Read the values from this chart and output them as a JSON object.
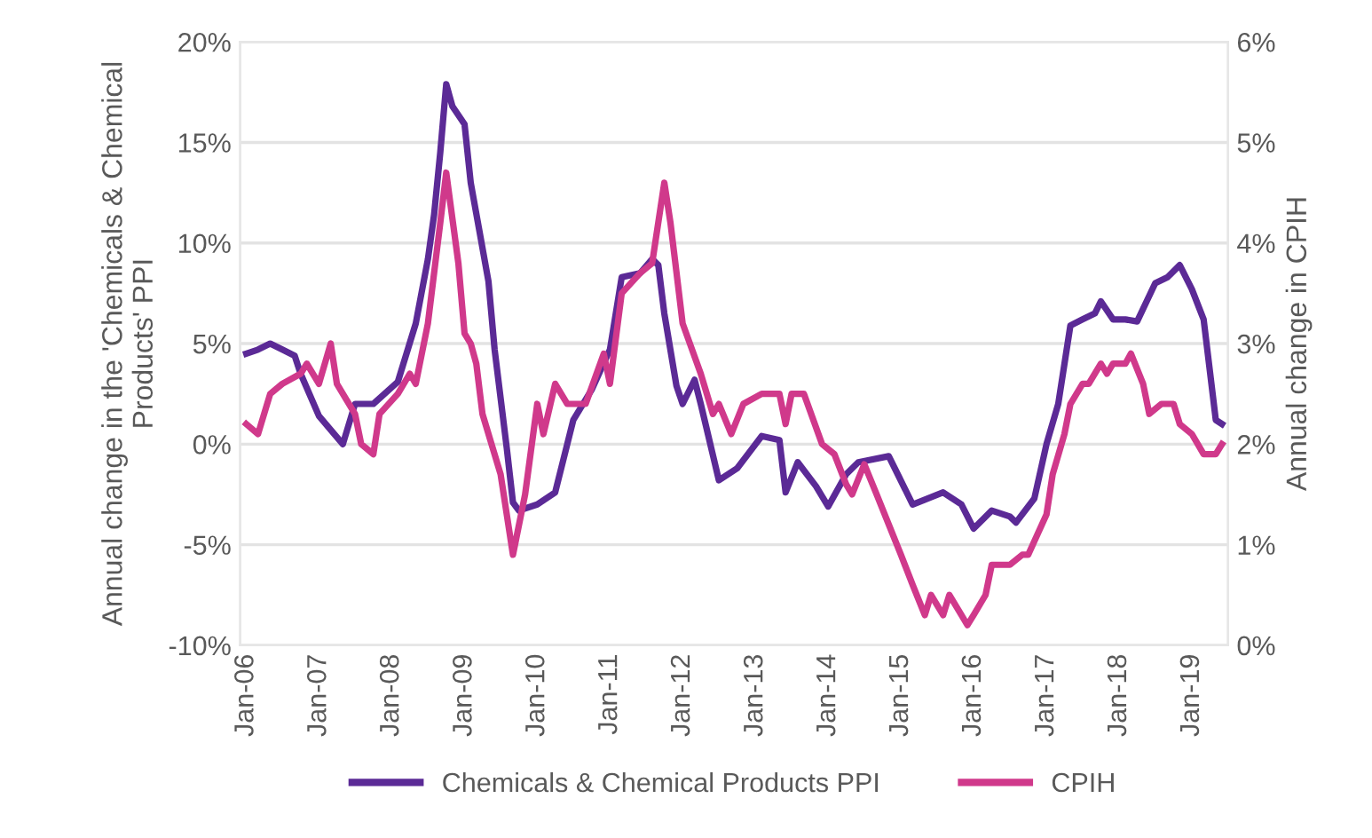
{
  "chart_data": {
    "type": "line",
    "ylabel": "Annual change in the 'Chemicals & Chemical Products' PPI",
    "y2label": "Annual change in CPIH",
    "xlim": [
      "2005-12",
      "2019-07"
    ],
    "xticks": [
      {
        "value": "2006-01",
        "label": "Jan-06"
      },
      {
        "value": "2007-01",
        "label": "Jan-07"
      },
      {
        "value": "2008-01",
        "label": "Jan-08"
      },
      {
        "value": "2009-01",
        "label": "Jan-09"
      },
      {
        "value": "2010-01",
        "label": "Jan-10"
      },
      {
        "value": "2011-01",
        "label": "Jan-11"
      },
      {
        "value": "2012-01",
        "label": "Jan-12"
      },
      {
        "value": "2013-01",
        "label": "Jan-13"
      },
      {
        "value": "2014-01",
        "label": "Jan-14"
      },
      {
        "value": "2015-01",
        "label": "Jan-15"
      },
      {
        "value": "2016-01",
        "label": "Jan-16"
      },
      {
        "value": "2017-01",
        "label": "Jan-17"
      },
      {
        "value": "2018-01",
        "label": "Jan-18"
      },
      {
        "value": "2019-01",
        "label": "Jan-19"
      }
    ],
    "ylim": [
      -10,
      20
    ],
    "yticks": [
      {
        "value": -10,
        "label": "-10%"
      },
      {
        "value": -5,
        "label": "-5%"
      },
      {
        "value": 0,
        "label": "0%"
      },
      {
        "value": 5,
        "label": "5%"
      },
      {
        "value": 10,
        "label": "10%"
      },
      {
        "value": 15,
        "label": "15%"
      },
      {
        "value": 20,
        "label": "20%"
      }
    ],
    "y2lim": [
      0,
      6
    ],
    "y2ticks": [
      {
        "value": 0,
        "label": "0%"
      },
      {
        "value": 1,
        "label": "1%"
      },
      {
        "value": 2,
        "label": "2%"
      },
      {
        "value": 3,
        "label": "3%"
      },
      {
        "value": 4,
        "label": "4%"
      },
      {
        "value": 5,
        "label": "5%"
      },
      {
        "value": 6,
        "label": "6%"
      }
    ],
    "grid": "y",
    "legend": "bottom",
    "series": [
      {
        "name": "Chemicals & Chemical Products PPI",
        "color": "#5b2a96",
        "x": [
          "2006-01",
          "2006-03",
          "2006-05",
          "2006-07",
          "2006-09",
          "2006-10",
          "2007-01",
          "2007-05",
          "2007-07",
          "2007-10",
          "2008-02",
          "2008-05",
          "2008-07",
          "2008-08",
          "2008-09",
          "2008-10",
          "2008-11",
          "2009-01",
          "2009-02",
          "2009-05",
          "2009-06",
          "2009-08",
          "2009-09",
          "2009-10",
          "2010-01",
          "2010-04",
          "2010-07",
          "2010-10",
          "2011-01",
          "2011-03",
          "2011-06",
          "2011-08",
          "2011-09",
          "2011-10",
          "2011-12",
          "2012-01",
          "2012-03",
          "2012-04",
          "2012-07",
          "2012-10",
          "2013-02",
          "2013-05",
          "2013-06",
          "2013-08",
          "2013-11",
          "2014-01",
          "2014-04",
          "2014-06",
          "2014-11",
          "2015-03",
          "2015-08",
          "2015-11",
          "2016-01",
          "2016-04",
          "2016-07",
          "2016-08",
          "2016-11",
          "2017-01",
          "2017-03",
          "2017-05",
          "2017-07",
          "2017-09",
          "2017-10",
          "2017-12",
          "2018-02",
          "2018-04",
          "2018-07",
          "2018-09",
          "2018-11",
          "2019-01",
          "2019-03",
          "2019-05",
          "2019-06"
        ],
        "values": [
          4.5,
          4.7,
          5.0,
          4.7,
          4.4,
          3.5,
          1.4,
          0.0,
          2.0,
          2.0,
          3.1,
          6.0,
          9.2,
          11.4,
          14.5,
          17.9,
          16.8,
          15.9,
          13.0,
          8.1,
          4.7,
          -0.2,
          -2.9,
          -3.3,
          -3.0,
          -2.4,
          1.2,
          2.7,
          4.7,
          8.3,
          8.5,
          9.2,
          8.9,
          6.5,
          2.9,
          2.0,
          3.2,
          2.0,
          -1.8,
          -1.2,
          0.4,
          0.2,
          -2.4,
          -0.9,
          -2.1,
          -3.1,
          -1.5,
          -0.9,
          -0.6,
          -3.0,
          -2.4,
          -3.0,
          -4.2,
          -3.3,
          -3.6,
          -3.9,
          -2.7,
          0.0,
          2.0,
          5.9,
          6.2,
          6.5,
          7.1,
          6.2,
          6.2,
          6.1,
          8.0,
          8.3,
          8.9,
          7.7,
          6.2,
          1.2,
          1.0
        ]
      },
      {
        "name": "CPIH",
        "color": "#d0398b",
        "axis": "y2",
        "x": [
          "2006-01",
          "2006-03",
          "2006-05",
          "2006-07",
          "2006-10",
          "2006-11",
          "2007-01",
          "2007-03",
          "2007-04",
          "2007-05",
          "2007-07",
          "2007-08",
          "2007-10",
          "2007-11",
          "2008-02",
          "2008-04",
          "2008-05",
          "2008-07",
          "2008-09",
          "2008-10",
          "2008-12",
          "2009-01",
          "2009-02",
          "2009-03",
          "2009-04",
          "2009-07",
          "2009-09",
          "2009-11",
          "2010-01",
          "2010-02",
          "2010-04",
          "2010-06",
          "2010-09",
          "2010-12",
          "2011-01",
          "2011-03",
          "2011-06",
          "2011-08",
          "2011-10",
          "2011-11",
          "2012-01",
          "2012-04",
          "2012-06",
          "2012-07",
          "2012-09",
          "2012-11",
          "2013-02",
          "2013-05",
          "2013-06",
          "2013-07",
          "2013-09",
          "2013-12",
          "2014-02",
          "2014-04",
          "2014-05",
          "2014-07",
          "2014-09",
          "2014-11",
          "2015-01",
          "2015-03",
          "2015-05",
          "2015-06",
          "2015-08",
          "2015-09",
          "2015-11",
          "2015-12",
          "2016-01",
          "2016-03",
          "2016-04",
          "2016-07",
          "2016-09",
          "2016-10",
          "2017-01",
          "2017-02",
          "2017-04",
          "2017-05",
          "2017-07",
          "2017-08",
          "2017-10",
          "2017-11",
          "2017-12",
          "2018-02",
          "2018-03",
          "2018-05",
          "2018-06",
          "2018-08",
          "2018-10",
          "2018-11",
          "2019-01",
          "2019-03",
          "2019-05",
          "2019-06"
        ],
        "values": [
          2.2,
          2.1,
          2.5,
          2.6,
          2.7,
          2.8,
          2.6,
          3.0,
          2.6,
          2.5,
          2.3,
          2.0,
          1.9,
          2.3,
          2.5,
          2.7,
          2.6,
          3.2,
          4.2,
          4.7,
          3.8,
          3.1,
          3.0,
          2.8,
          2.3,
          1.7,
          0.9,
          1.5,
          2.4,
          2.1,
          2.6,
          2.4,
          2.4,
          2.9,
          2.6,
          3.5,
          3.7,
          3.8,
          4.6,
          4.2,
          3.2,
          2.7,
          2.3,
          2.4,
          2.1,
          2.4,
          2.5,
          2.5,
          2.2,
          2.5,
          2.5,
          2.0,
          1.9,
          1.6,
          1.5,
          1.8,
          1.5,
          1.2,
          0.9,
          0.6,
          0.3,
          0.5,
          0.3,
          0.5,
          0.3,
          0.2,
          0.3,
          0.5,
          0.8,
          0.8,
          0.9,
          0.9,
          1.3,
          1.7,
          2.1,
          2.4,
          2.6,
          2.6,
          2.8,
          2.7,
          2.8,
          2.8,
          2.9,
          2.6,
          2.3,
          2.4,
          2.4,
          2.2,
          2.1,
          1.9,
          1.9,
          2.0
        ]
      }
    ]
  }
}
